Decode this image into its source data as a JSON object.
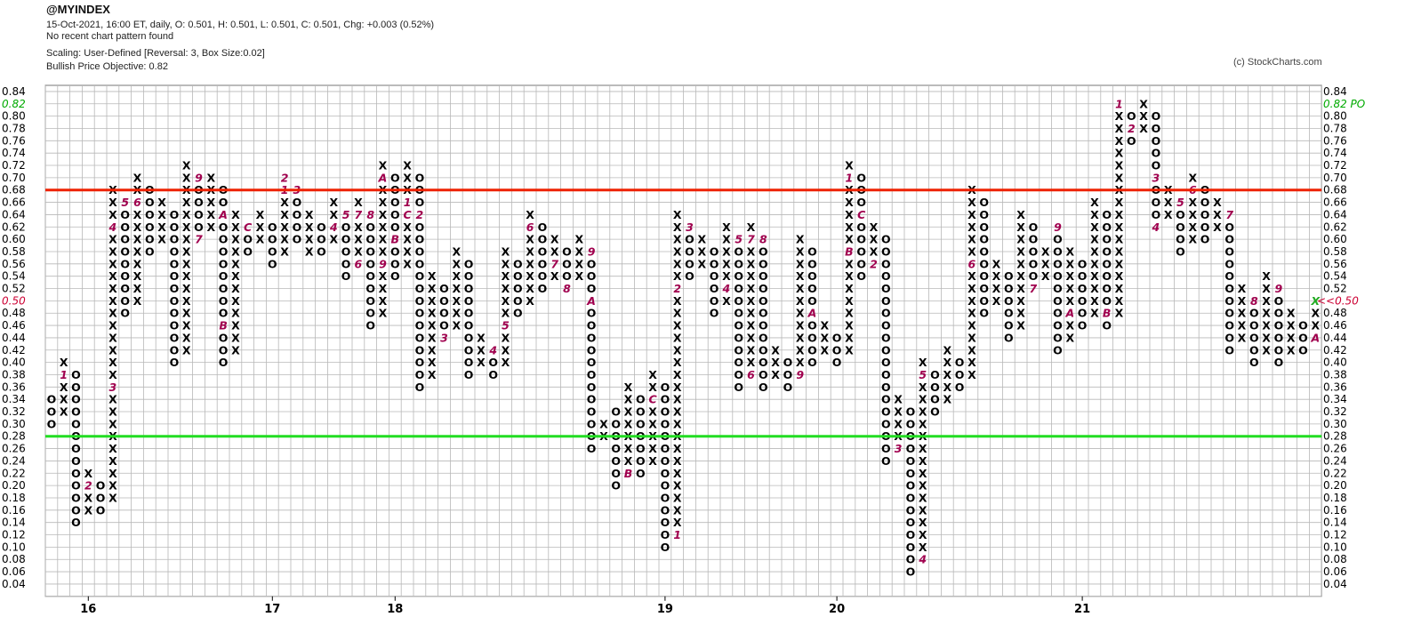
{
  "header": {
    "symbol": "@MYINDEX",
    "line1": "15-Oct-2021, 16:00 ET, daily, O: 0.501, H: 0.501, L: 0.501, C: 0.501, Chg: +0.003 (0.52%)",
    "line2": "No recent chart pattern found",
    "line3": "Scaling: User-Defined [Reversal: 3, Box Size:0.02]",
    "line4": "Bullish Price Objective: 0.82",
    "copyright": "(c) StockCharts.com"
  },
  "chart_data": {
    "type": "point-and-figure",
    "box_size": 0.02,
    "reversal": 3,
    "ylim": [
      0.04,
      0.84
    ],
    "y_ticks": [
      "0.84",
      "0.82",
      "0.80",
      "0.78",
      "0.76",
      "0.74",
      "0.72",
      "0.70",
      "0.68",
      "0.66",
      "0.64",
      "0.62",
      "0.60",
      "0.58",
      "0.56",
      "0.54",
      "0.52",
      "0.50",
      "0.48",
      "0.46",
      "0.44",
      "0.42",
      "0.40",
      "0.38",
      "0.36",
      "0.34",
      "0.32",
      "0.30",
      "0.28",
      "0.26",
      "0.24",
      "0.22",
      "0.20",
      "0.18",
      "0.16",
      "0.14",
      "0.12",
      "0.10",
      "0.08",
      "0.06",
      "0.04"
    ],
    "left_markers": {
      "price_objective": "0.82",
      "last_price": "0.50"
    },
    "right_markers": {
      "price_objective": "0.82 PO",
      "last_price": "<<0.50"
    },
    "year_labels": [
      {
        "label": "16",
        "column": 3
      },
      {
        "label": "17",
        "column": 18
      },
      {
        "label": "18",
        "column": 28
      },
      {
        "label": "19",
        "column": 50
      },
      {
        "label": "20",
        "column": 64
      },
      {
        "label": "21",
        "column": 84
      }
    ],
    "resistance_line": {
      "price": 0.69,
      "color": "#ee2200"
    },
    "support_line": {
      "price": 0.29,
      "color": "#22dd22"
    },
    "columns": [
      {
        "type": "O",
        "high": 0.34,
        "low": 0.3
      },
      {
        "type": "X",
        "high": 0.4,
        "low": 0.32,
        "marks": [
          {
            "price": 0.38,
            "label": "1"
          }
        ]
      },
      {
        "type": "O",
        "high": 0.38,
        "low": 0.14
      },
      {
        "type": "X",
        "high": 0.22,
        "low": 0.16,
        "marks": [
          {
            "price": 0.2,
            "label": "2"
          }
        ]
      },
      {
        "type": "O",
        "high": 0.2,
        "low": 0.16
      },
      {
        "type": "X",
        "high": 0.68,
        "low": 0.18,
        "marks": [
          {
            "price": 0.36,
            "label": "3"
          },
          {
            "price": 0.62,
            "label": "4"
          }
        ]
      },
      {
        "type": "O",
        "high": 0.66,
        "low": 0.48,
        "marks": [
          {
            "price": 0.66,
            "label": "5"
          }
        ]
      },
      {
        "type": "X",
        "high": 0.7,
        "low": 0.5,
        "marks": [
          {
            "price": 0.66,
            "label": "6"
          }
        ]
      },
      {
        "type": "O",
        "high": 0.68,
        "low": 0.58
      },
      {
        "type": "X",
        "high": 0.66,
        "low": 0.6
      },
      {
        "type": "O",
        "high": 0.64,
        "low": 0.4
      },
      {
        "type": "X",
        "high": 0.72,
        "low": 0.42
      },
      {
        "type": "O",
        "high": 0.7,
        "low": 0.6,
        "marks": [
          {
            "price": 0.6,
            "label": "7"
          },
          {
            "price": 0.7,
            "label": "9"
          }
        ]
      },
      {
        "type": "X",
        "high": 0.7,
        "low": 0.62
      },
      {
        "type": "O",
        "high": 0.68,
        "low": 0.4,
        "marks": [
          {
            "price": 0.64,
            "label": "A"
          },
          {
            "price": 0.46,
            "label": "B"
          }
        ]
      },
      {
        "type": "X",
        "high": 0.64,
        "low": 0.42
      },
      {
        "type": "O",
        "high": 0.62,
        "low": 0.58,
        "marks": [
          {
            "price": 0.62,
            "label": "C"
          }
        ]
      },
      {
        "type": "X",
        "high": 0.64,
        "low": 0.6
      },
      {
        "type": "O",
        "high": 0.62,
        "low": 0.56
      },
      {
        "type": "X",
        "high": 0.7,
        "low": 0.58,
        "marks": [
          {
            "price": 0.68,
            "label": "1"
          },
          {
            "price": 0.7,
            "label": "2"
          }
        ]
      },
      {
        "type": "O",
        "high": 0.68,
        "low": 0.6,
        "marks": [
          {
            "price": 0.68,
            "label": "3"
          }
        ]
      },
      {
        "type": "X",
        "high": 0.64,
        "low": 0.58
      },
      {
        "type": "O",
        "high": 0.62,
        "low": 0.58
      },
      {
        "type": "X",
        "high": 0.66,
        "low": 0.6,
        "marks": [
          {
            "price": 0.62,
            "label": "4"
          }
        ]
      },
      {
        "type": "O",
        "high": 0.64,
        "low": 0.54,
        "marks": [
          {
            "price": 0.64,
            "label": "5"
          }
        ]
      },
      {
        "type": "X",
        "high": 0.66,
        "low": 0.56,
        "marks": [
          {
            "price": 0.56,
            "label": "6"
          },
          {
            "price": 0.64,
            "label": "7"
          }
        ]
      },
      {
        "type": "O",
        "high": 0.64,
        "low": 0.46,
        "marks": [
          {
            "price": 0.64,
            "label": "8"
          }
        ]
      },
      {
        "type": "X",
        "high": 0.72,
        "low": 0.48,
        "marks": [
          {
            "price": 0.56,
            "label": "9"
          },
          {
            "price": 0.7,
            "label": "A"
          }
        ]
      },
      {
        "type": "O",
        "high": 0.7,
        "low": 0.54,
        "marks": [
          {
            "price": 0.6,
            "label": "B"
          }
        ]
      },
      {
        "type": "X",
        "high": 0.72,
        "low": 0.56,
        "marks": [
          {
            "price": 0.64,
            "label": "C"
          },
          {
            "price": 0.66,
            "label": "1"
          }
        ]
      },
      {
        "type": "O",
        "high": 0.7,
        "low": 0.36,
        "marks": [
          {
            "price": 0.64,
            "label": "2"
          }
        ]
      },
      {
        "type": "X",
        "high": 0.54,
        "low": 0.38
      },
      {
        "type": "O",
        "high": 0.52,
        "low": 0.44,
        "marks": [
          {
            "price": 0.44,
            "label": "3"
          }
        ]
      },
      {
        "type": "X",
        "high": 0.58,
        "low": 0.46
      },
      {
        "type": "O",
        "high": 0.56,
        "low": 0.38
      },
      {
        "type": "X",
        "high": 0.44,
        "low": 0.4
      },
      {
        "type": "O",
        "high": 0.42,
        "low": 0.38,
        "marks": [
          {
            "price": 0.42,
            "label": "4"
          }
        ]
      },
      {
        "type": "X",
        "high": 0.58,
        "low": 0.4,
        "marks": [
          {
            "price": 0.46,
            "label": "5"
          }
        ]
      },
      {
        "type": "O",
        "high": 0.56,
        "low": 0.48
      },
      {
        "type": "X",
        "high": 0.64,
        "low": 0.5,
        "marks": [
          {
            "price": 0.62,
            "label": "6"
          }
        ]
      },
      {
        "type": "O",
        "high": 0.62,
        "low": 0.52
      },
      {
        "type": "X",
        "high": 0.6,
        "low": 0.54,
        "marks": [
          {
            "price": 0.56,
            "label": "7"
          }
        ]
      },
      {
        "type": "O",
        "high": 0.58,
        "low": 0.52,
        "marks": [
          {
            "price": 0.52,
            "label": "8"
          }
        ]
      },
      {
        "type": "X",
        "high": 0.6,
        "low": 0.54
      },
      {
        "type": "O",
        "high": 0.58,
        "low": 0.26,
        "marks": [
          {
            "price": 0.58,
            "label": "9"
          },
          {
            "price": 0.5,
            "label": "A"
          }
        ]
      },
      {
        "type": "X",
        "high": 0.3,
        "low": 0.28
      },
      {
        "type": "O",
        "high": 0.32,
        "low": 0.2
      },
      {
        "type": "X",
        "high": 0.36,
        "low": 0.22,
        "marks": [
          {
            "price": 0.22,
            "label": "B"
          }
        ]
      },
      {
        "type": "O",
        "high": 0.34,
        "low": 0.22
      },
      {
        "type": "X",
        "high": 0.38,
        "low": 0.24,
        "marks": [
          {
            "price": 0.34,
            "label": "C"
          }
        ]
      },
      {
        "type": "O",
        "high": 0.36,
        "low": 0.1
      },
      {
        "type": "X",
        "high": 0.64,
        "low": 0.12,
        "marks": [
          {
            "price": 0.12,
            "label": "1"
          },
          {
            "price": 0.52,
            "label": "2"
          }
        ]
      },
      {
        "type": "O",
        "high": 0.62,
        "low": 0.54,
        "marks": [
          {
            "price": 0.62,
            "label": "3"
          }
        ]
      },
      {
        "type": "X",
        "high": 0.6,
        "low": 0.56
      },
      {
        "type": "O",
        "high": 0.58,
        "low": 0.48
      },
      {
        "type": "X",
        "high": 0.62,
        "low": 0.5,
        "marks": [
          {
            "price": 0.52,
            "label": "4"
          }
        ]
      },
      {
        "type": "O",
        "high": 0.6,
        "low": 0.36,
        "marks": [
          {
            "price": 0.6,
            "label": "5"
          }
        ]
      },
      {
        "type": "X",
        "high": 0.62,
        "low": 0.38,
        "marks": [
          {
            "price": 0.38,
            "label": "6"
          },
          {
            "price": 0.6,
            "label": "7"
          }
        ]
      },
      {
        "type": "O",
        "high": 0.6,
        "low": 0.36,
        "marks": [
          {
            "price": 0.6,
            "label": "8"
          }
        ]
      },
      {
        "type": "X",
        "high": 0.42,
        "low": 0.38
      },
      {
        "type": "O",
        "high": 0.4,
        "low": 0.36
      },
      {
        "type": "X",
        "high": 0.6,
        "low": 0.38,
        "marks": [
          {
            "price": 0.38,
            "label": "9"
          }
        ]
      },
      {
        "type": "O",
        "high": 0.58,
        "low": 0.4,
        "marks": [
          {
            "price": 0.48,
            "label": "A"
          }
        ]
      },
      {
        "type": "X",
        "high": 0.46,
        "low": 0.42
      },
      {
        "type": "O",
        "high": 0.44,
        "low": 0.4
      },
      {
        "type": "X",
        "high": 0.72,
        "low": 0.42,
        "marks": [
          {
            "price": 0.7,
            "label": "1"
          },
          {
            "price": 0.58,
            "label": "B"
          }
        ]
      },
      {
        "type": "O",
        "high": 0.7,
        "low": 0.54,
        "marks": [
          {
            "price": 0.64,
            "label": "C"
          }
        ]
      },
      {
        "type": "X",
        "high": 0.62,
        "low": 0.56,
        "marks": [
          {
            "price": 0.56,
            "label": "2"
          }
        ]
      },
      {
        "type": "O",
        "high": 0.6,
        "low": 0.24
      },
      {
        "type": "X",
        "high": 0.34,
        "low": 0.26,
        "marks": [
          {
            "price": 0.26,
            "label": "3"
          }
        ]
      },
      {
        "type": "O",
        "high": 0.32,
        "low": 0.06
      },
      {
        "type": "X",
        "high": 0.4,
        "low": 0.08,
        "marks": [
          {
            "price": 0.08,
            "label": "4"
          },
          {
            "price": 0.38,
            "label": "5"
          }
        ]
      },
      {
        "type": "O",
        "high": 0.38,
        "low": 0.32
      },
      {
        "type": "X",
        "high": 0.42,
        "low": 0.34
      },
      {
        "type": "O",
        "high": 0.4,
        "low": 0.36
      },
      {
        "type": "X",
        "high": 0.68,
        "low": 0.38,
        "marks": [
          {
            "price": 0.56,
            "label": "6"
          }
        ]
      },
      {
        "type": "O",
        "high": 0.66,
        "low": 0.48
      },
      {
        "type": "X",
        "high": 0.56,
        "low": 0.5
      },
      {
        "type": "O",
        "high": 0.54,
        "low": 0.44
      },
      {
        "type": "X",
        "high": 0.64,
        "low": 0.46
      },
      {
        "type": "O",
        "high": 0.62,
        "low": 0.52,
        "marks": [
          {
            "price": 0.52,
            "label": "7"
          }
        ]
      },
      {
        "type": "X",
        "high": 0.58,
        "low": 0.54,
        "marks": [
          {
            "price": 0.6,
            "label": "8"
          }
        ]
      },
      {
        "type": "O",
        "high": 0.62,
        "low": 0.42,
        "marks": [
          {
            "price": 0.62,
            "label": "9"
          }
        ]
      },
      {
        "type": "X",
        "high": 0.58,
        "low": 0.44,
        "marks": [
          {
            "price": 0.48,
            "label": "A"
          }
        ]
      },
      {
        "type": "O",
        "high": 0.56,
        "low": 0.46
      },
      {
        "type": "X",
        "high": 0.66,
        "low": 0.48
      },
      {
        "type": "O",
        "high": 0.64,
        "low": 0.46,
        "marks": [
          {
            "price": 0.48,
            "label": "B"
          }
        ]
      },
      {
        "type": "X",
        "high": 0.82,
        "low": 0.48,
        "marks": [
          {
            "price": 0.82,
            "label": "1"
          }
        ]
      },
      {
        "type": "O",
        "high": 0.8,
        "low": 0.76,
        "marks": [
          {
            "price": 0.78,
            "label": "2"
          }
        ]
      },
      {
        "type": "X",
        "high": 0.82,
        "low": 0.78
      },
      {
        "type": "O",
        "high": 0.8,
        "low": 0.62,
        "marks": [
          {
            "price": 0.7,
            "label": "3"
          },
          {
            "price": 0.62,
            "label": "4"
          }
        ]
      },
      {
        "type": "X",
        "high": 0.68,
        "low": 0.64
      },
      {
        "type": "O",
        "high": 0.66,
        "low": 0.58,
        "marks": [
          {
            "price": 0.66,
            "label": "5"
          }
        ]
      },
      {
        "type": "X",
        "high": 0.7,
        "low": 0.6,
        "marks": [
          {
            "price": 0.68,
            "label": "6"
          }
        ]
      },
      {
        "type": "O",
        "high": 0.68,
        "low": 0.6
      },
      {
        "type": "X",
        "high": 0.66,
        "low": 0.62
      },
      {
        "type": "O",
        "high": 0.64,
        "low": 0.42,
        "marks": [
          {
            "price": 0.64,
            "label": "7"
          }
        ]
      },
      {
        "type": "X",
        "high": 0.52,
        "low": 0.44
      },
      {
        "type": "O",
        "high": 0.5,
        "low": 0.4,
        "marks": [
          {
            "price": 0.5,
            "label": "8"
          }
        ]
      },
      {
        "type": "X",
        "high": 0.54,
        "low": 0.42
      },
      {
        "type": "O",
        "high": 0.52,
        "low": 0.4,
        "marks": [
          {
            "price": 0.52,
            "label": "9"
          }
        ]
      },
      {
        "type": "X",
        "high": 0.48,
        "low": 0.42
      },
      {
        "type": "O",
        "high": 0.46,
        "low": 0.42
      },
      {
        "type": "X",
        "high": 0.5,
        "low": 0.44,
        "marks": [
          {
            "price": 0.44,
            "label": "A"
          },
          {
            "price": 0.5,
            "label": "X",
            "color": "green"
          }
        ]
      }
    ]
  }
}
